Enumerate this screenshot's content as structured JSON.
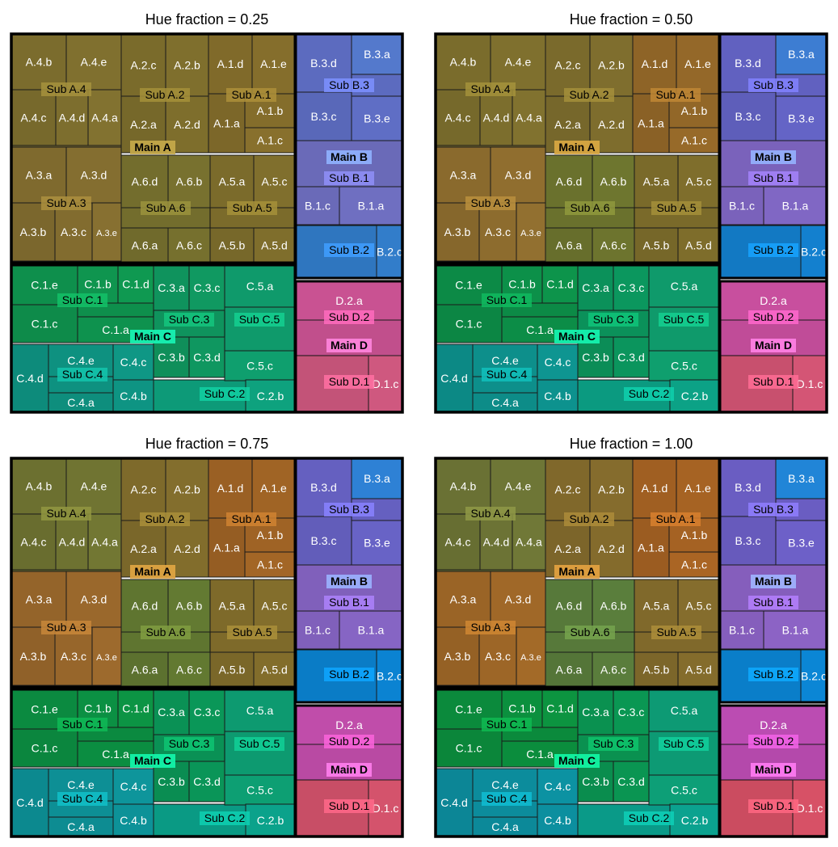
{
  "chart_data": [
    {
      "type": "treemap",
      "title": "Hue fraction = 0.25",
      "hue_fraction": 0.25,
      "colors": {
        "A": "#7d6b2e",
        "B": "#5a6fbf",
        "C": "#0f9a72",
        "D": "#c9538b"
      },
      "groups": [
        {
          "name": "Main A",
          "subgroups": [
            {
              "name": "Sub A.1",
              "items": [
                "A.1.a",
                "A.1.b",
                "A.1.c",
                "A.1.d",
                "A.1.e"
              ]
            },
            {
              "name": "Sub A.2",
              "items": [
                "A.2.a",
                "A.2.b",
                "A.2.c",
                "A.2.d"
              ]
            },
            {
              "name": "Sub A.3",
              "items": [
                "A.3.a",
                "A.3.b",
                "A.3.c",
                "A.3.d",
                "A.3.e"
              ]
            },
            {
              "name": "Sub A.4",
              "items": [
                "A.4.a",
                "A.4.b",
                "A.4.c",
                "A.4.d",
                "A.4.e"
              ]
            },
            {
              "name": "Sub A.5",
              "items": [
                "A.5.a",
                "A.5.b",
                "A.5.c",
                "A.5.d"
              ]
            },
            {
              "name": "Sub A.6",
              "items": [
                "A.6.a",
                "A.6.b",
                "A.6.c",
                "A.6.d"
              ]
            }
          ]
        },
        {
          "name": "Main B",
          "subgroups": [
            {
              "name": "Sub B.1",
              "items": [
                "B.1.a",
                "B.1.c"
              ]
            },
            {
              "name": "Sub B.2",
              "items": [
                "B.2.c"
              ]
            },
            {
              "name": "Sub B.3",
              "items": [
                "B.3.a",
                "B.3.c",
                "B.3.d",
                "B.3.e"
              ]
            }
          ]
        },
        {
          "name": "Main C",
          "subgroups": [
            {
              "name": "Sub C.1",
              "items": [
                "C.1.a",
                "C.1.b",
                "C.1.c",
                "C.1.d",
                "C.1.e"
              ]
            },
            {
              "name": "Sub C.2",
              "items": [
                "C.2.b"
              ]
            },
            {
              "name": "Sub C.3",
              "items": [
                "C.3.a",
                "C.3.b",
                "C.3.c",
                "C.3.d"
              ]
            },
            {
              "name": "Sub C.4",
              "items": [
                "C.4.a",
                "C.4.b",
                "C.4.c",
                "C.4.d",
                "C.4.e"
              ]
            },
            {
              "name": "Sub C.5",
              "items": [
                "C.5.a",
                "C.5.c"
              ]
            }
          ]
        },
        {
          "name": "Main D",
          "subgroups": [
            {
              "name": "Sub D.1",
              "items": [
                "D.1.c"
              ]
            },
            {
              "name": "Sub D.2",
              "items": [
                "D.2.a"
              ]
            }
          ]
        }
      ]
    },
    {
      "type": "treemap",
      "title": "Hue fraction = 0.50",
      "hue_fraction": 0.5,
      "colors": {
        "A": "#8a6a2a",
        "B": "#5d6fc4",
        "C": "#0d9a70",
        "D": "#c8518f"
      }
    },
    {
      "type": "treemap",
      "title": "Hue fraction = 0.75",
      "hue_fraction": 0.75,
      "colors": {
        "A": "#8d6829",
        "B": "#6070c6",
        "C": "#0c9b6c",
        "D": "#c44f94"
      }
    },
    {
      "type": "treemap",
      "title": "Hue fraction = 1.00",
      "hue_fraction": 1.0,
      "colors": {
        "A": "#8f6628",
        "B": "#6471c8",
        "C": "#0b9c68",
        "D": "#c04d98"
      }
    }
  ],
  "variant_colors": [
    {
      "A": {
        "A.4": [
          "#7b6c2d",
          "#7b6c2d"
        ],
        "A.3": [
          "#7f6a2e",
          "#7f6a2e"
        ],
        "A.2": [
          "#7a6b2b",
          "#7a6b2b"
        ],
        "A.1": [
          "#806a2a",
          "#806a2a"
        ],
        "A.6": [
          "#736d2d",
          "#736d2d"
        ],
        "A.5": [
          "#7b6b2b",
          "#7b6b2b"
        ]
      },
      "B": {
        "B.3": [
          "#5c6bbf",
          "#4f72c0"
        ],
        "B.1": [
          "#6a6ab8",
          "#6a6ab8"
        ],
        "B.2": [
          "#2f76bf",
          "#2f76bf"
        ]
      },
      "C": {
        "C.1": [
          "#0e8f4c",
          "#0e8f4c"
        ],
        "C.3": [
          "#0f935d",
          "#0f935d"
        ],
        "C.5": [
          "#0f9a6b",
          "#0f9a6b"
        ],
        "C.4": [
          "#0e9180",
          "#0e9180"
        ],
        "C.2": [
          "#0d9a78",
          "#0d9a78"
        ]
      },
      "D": {
        "D.2": [
          "#c14f8c",
          "#c14f8c"
        ],
        "D.1": [
          "#c35378",
          "#c35378"
        ]
      }
    },
    {
      "A": {
        "A.4": [
          "#7a6c2c",
          "#7a6c2c"
        ],
        "A.3": [
          "#8a6a2d",
          "#8a6a2d"
        ],
        "A.2": [
          "#7a6a2c",
          "#7a6a2c"
        ],
        "A.1": [
          "#8e6427",
          "#8e6427"
        ],
        "A.6": [
          "#6a712d",
          "#6a712d"
        ],
        "A.5": [
          "#7a6a2a",
          "#7a6a2a"
        ]
      },
      "B": {
        "B.3": [
          "#6161c0",
          "#3a76c6"
        ],
        "B.1": [
          "#7a62bb",
          "#7a62bb"
        ],
        "B.2": [
          "#1279c3",
          "#1279c3"
        ]
      },
      "C": {
        "C.1": [
          "#0c8a46",
          "#0c8a46"
        ],
        "C.3": [
          "#0b915a",
          "#0b915a"
        ],
        "C.5": [
          "#0f9a6b",
          "#0f9a6b"
        ],
        "C.4": [
          "#0d8f8b",
          "#0d8f8b"
        ],
        "C.2": [
          "#0b9a80",
          "#0b9a80"
        ]
      },
      "D": {
        "D.2": [
          "#c04c98",
          "#c04c98"
        ],
        "D.1": [
          "#c8506e",
          "#c8506e"
        ]
      }
    },
    {
      "A": {
        "A.4": [
          "#6c7030",
          "#6c7030"
        ],
        "A.3": [
          "#94642a",
          "#94642a"
        ],
        "A.2": [
          "#7e6a2b",
          "#7e6a2b"
        ],
        "A.1": [
          "#9a6024",
          "#9a6024"
        ],
        "A.6": [
          "#5f7530",
          "#5f7530"
        ],
        "A.5": [
          "#7e6a2a",
          "#7e6a2a"
        ]
      },
      "B": {
        "B.3": [
          "#6560c0",
          "#2b7ac9"
        ],
        "B.1": [
          "#8060bb",
          "#8060bb"
        ],
        "B.2": [
          "#0a7cc6",
          "#0a7cc6"
        ]
      },
      "C": {
        "C.1": [
          "#0b8a40",
          "#0b8a40"
        ],
        "C.3": [
          "#0a9155",
          "#0a9155"
        ],
        "C.5": [
          "#0d9a70",
          "#0d9a70"
        ],
        "C.4": [
          "#0d8f95",
          "#0d8f95"
        ],
        "C.2": [
          "#0a9a84",
          "#0a9a84"
        ]
      },
      "D": {
        "D.2": [
          "#b94aa3",
          "#b94aa3"
        ],
        "D.1": [
          "#c84e66",
          "#c84e66"
        ]
      }
    },
    {
      "A": {
        "A.4": [
          "#6a7134",
          "#6a7134"
        ],
        "A.3": [
          "#9a6426",
          "#9a6426"
        ],
        "A.2": [
          "#80682b",
          "#80682b"
        ],
        "A.1": [
          "#a05f22",
          "#a05f22"
        ],
        "A.6": [
          "#57793a",
          "#57793a"
        ],
        "A.5": [
          "#80692b",
          "#80692b"
        ]
      },
      "B": {
        "B.3": [
          "#6a5dc2",
          "#1f7dcb"
        ],
        "B.1": [
          "#855ebc",
          "#855ebc"
        ],
        "B.2": [
          "#0a7ec9",
          "#0a7ec9"
        ]
      },
      "C": {
        "C.1": [
          "#0b8a3c",
          "#0b8a3c"
        ],
        "C.3": [
          "#0a9150",
          "#0a9150"
        ],
        "C.5": [
          "#0d9a74",
          "#0d9a74"
        ],
        "C.4": [
          "#0c8c9c",
          "#0c8c9c"
        ],
        "C.2": [
          "#0a9a88",
          "#0a9a88"
        ]
      },
      "D": {
        "D.2": [
          "#b449ab",
          "#b449ab"
        ],
        "D.1": [
          "#cb4c60",
          "#cb4c60"
        ]
      }
    }
  ],
  "cell_labels": {
    "A.4.b": "A.4.b",
    "A.4.e": "A.4.e",
    "A.4.c": "A.4.c",
    "A.4.d": "A.4.d",
    "A.4.a": "A.4.a",
    "Sub A.4": "Sub A.4",
    "A.2.c": "A.2.c",
    "A.2.b": "A.2.b",
    "A.2.a": "A.2.a",
    "A.2.d": "A.2.d",
    "Sub A.2": "Sub A.2",
    "A.1.d": "A.1.d",
    "A.1.e": "A.1.e",
    "A.1.a": "A.1.a",
    "A.1.b": "A.1.b",
    "A.1.c": "A.1.c",
    "Sub A.1": "Sub A.1",
    "A.3.a": "A.3.a",
    "A.3.d": "A.3.d",
    "A.3.b": "A.3.b",
    "A.3.c": "A.3.c",
    "A.3.e": "A.3.e",
    "Sub A.3": "Sub A.3",
    "A.6.d": "A.6.d",
    "A.6.b": "A.6.b",
    "A.6.a": "A.6.a",
    "A.6.c": "A.6.c",
    "Sub A.6": "Sub A.6",
    "A.5.a": "A.5.a",
    "A.5.c": "A.5.c",
    "A.5.b": "A.5.b",
    "A.5.d": "A.5.d",
    "Sub A.5": "Sub A.5",
    "Main A": "Main A",
    "B.3.d": "B.3.d",
    "B.3.a": "B.3.a",
    "B.3.c": "B.3.c",
    "B.3.e": "B.3.e",
    "Sub B.3": "Sub B.3",
    "B.1.c": "B.1.c",
    "B.1.a": "B.1.a",
    "Sub B.1": "Sub B.1",
    "B.2.c": "B.2.c",
    "Sub B.2": "Sub B.2",
    "Main B": "Main B",
    "C.1.e": "C.1.e",
    "C.1.b": "C.1.b",
    "C.1.d": "C.1.d",
    "C.1.c": "C.1.c",
    "C.1.a": "C.1.a",
    "Sub C.1": "Sub C.1",
    "C.3.a": "C.3.a",
    "C.3.c": "C.3.c",
    "C.3.b": "C.3.b",
    "C.3.d": "C.3.d",
    "Sub C.3": "Sub C.3",
    "C.5.a": "C.5.a",
    "C.5.c": "C.5.c",
    "Sub C.5": "Sub C.5",
    "C.4.d": "C.4.d",
    "C.4.e": "C.4.e",
    "C.4.c": "C.4.c",
    "C.4.a": "C.4.a",
    "C.4.b": "C.4.b",
    "Sub C.4": "Sub C.4",
    "C.2.b": "C.2.b",
    "Sub C.2": "Sub C.2",
    "Main C": "Main C",
    "D.2.a": "D.2.a",
    "Sub D.2": "Sub D.2",
    "D.1.c": "D.1.c",
    "Sub D.1": "Sub D.1",
    "Main D": "Main D"
  }
}
